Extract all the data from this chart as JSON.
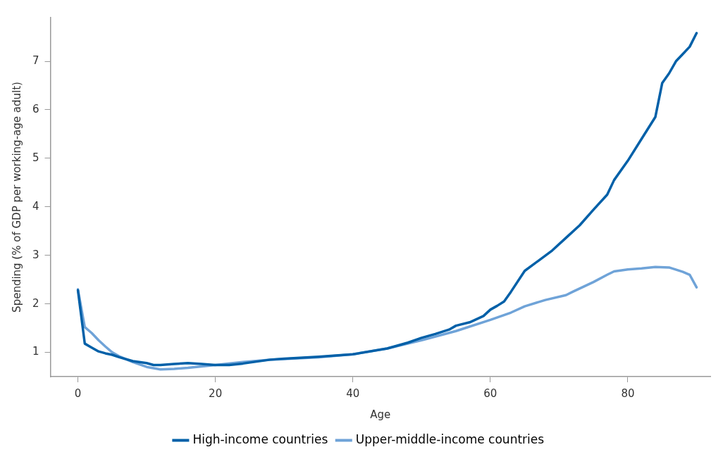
{
  "chart_data": {
    "type": "line",
    "xlabel": "Age",
    "ylabel": "Spending (% of GDP per working-age adult)",
    "xlim": [
      -4,
      92
    ],
    "ylim": [
      0.5,
      7.9
    ],
    "xticks": [
      0,
      20,
      40,
      60,
      80
    ],
    "yticks": [
      1,
      2,
      3,
      4,
      5,
      6,
      7
    ],
    "grid": false,
    "legend": "bottom",
    "marker": "none",
    "line_style": "solid",
    "series": [
      {
        "name": "High-income countries",
        "color": "#0060a8",
        "x": [
          0,
          1,
          2,
          3,
          4,
          5,
          6,
          8,
          10,
          11,
          12,
          14,
          16,
          18,
          20,
          22,
          24,
          26,
          28,
          30,
          35,
          40,
          45,
          48,
          50,
          52,
          54,
          55,
          57,
          59,
          60,
          61,
          62,
          63,
          65,
          67,
          69,
          71,
          73,
          75,
          77,
          78,
          80,
          82,
          84,
          85,
          86,
          87,
          88,
          89,
          90
        ],
        "values": [
          2.28,
          1.18,
          1.1,
          1.02,
          0.98,
          0.95,
          0.9,
          0.82,
          0.78,
          0.74,
          0.74,
          0.76,
          0.78,
          0.76,
          0.74,
          0.74,
          0.77,
          0.81,
          0.85,
          0.87,
          0.91,
          0.96,
          1.08,
          1.2,
          1.3,
          1.38,
          1.47,
          1.55,
          1.62,
          1.75,
          1.88,
          1.96,
          2.05,
          2.25,
          2.68,
          2.89,
          3.1,
          3.36,
          3.62,
          3.94,
          4.25,
          4.55,
          4.95,
          5.4,
          5.85,
          6.55,
          6.75,
          7.0,
          7.15,
          7.3,
          7.58
        ]
      },
      {
        "name": "Upper-middle-income countries",
        "color": "#6fa3d8",
        "x": [
          0,
          1,
          2,
          3,
          4,
          5,
          6,
          8,
          10,
          12,
          14,
          16,
          18,
          20,
          24,
          28,
          35,
          40,
          45,
          50,
          55,
          60,
          63,
          65,
          68,
          71,
          72,
          75,
          77,
          78,
          80,
          82,
          84,
          86,
          88,
          89,
          90
        ],
        "values": [
          2.3,
          1.52,
          1.4,
          1.25,
          1.12,
          1.0,
          0.92,
          0.8,
          0.7,
          0.65,
          0.66,
          0.68,
          0.71,
          0.74,
          0.8,
          0.85,
          0.9,
          0.96,
          1.08,
          1.25,
          1.44,
          1.67,
          1.82,
          1.95,
          2.08,
          2.18,
          2.25,
          2.45,
          2.6,
          2.67,
          2.71,
          2.73,
          2.76,
          2.75,
          2.66,
          2.6,
          2.34
        ]
      }
    ]
  }
}
